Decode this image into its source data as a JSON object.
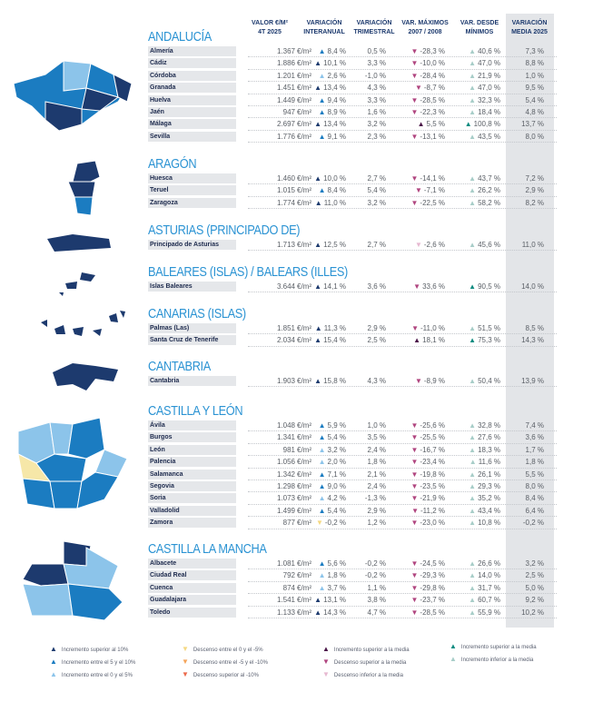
{
  "headers": {
    "valor": "VALOR €/M²",
    "valor2": "4T 2025",
    "inter": "VARIACIÓN",
    "inter2": "INTERANUAL",
    "trim": "VARIACIÓN",
    "trim2": "TRIMESTRAL",
    "max": "VAR. MÁXIMOS",
    "max2": "2007 / 2008",
    "min": "VAR. DESDE",
    "min2": "MÍNIMOS",
    "media": "VARIACIÓN",
    "media2": "MEDIA 2025"
  },
  "unit": "€/m²",
  "colors": {
    "title": "#2b93d3",
    "media_bg": "#e3e5e8"
  },
  "sections": [
    {
      "title": "ANDALUCÍA",
      "rows": [
        [
          "Almería",
          "1.367",
          "up-mid",
          "8,4 %",
          "0,5 %",
          "down-magenta",
          "-28,3 %",
          "up-lightteal",
          "40,6 %",
          "7,3 %"
        ],
        [
          "Cádiz",
          "1.886",
          "up-dark",
          "10,1 %",
          "3,3 %",
          "down-magenta",
          "-10,0 %",
          "up-lightteal",
          "47,0 %",
          "8,8 %"
        ],
        [
          "Córdoba",
          "1.201",
          "up-light",
          "2,6 %",
          "-1,0 %",
          "down-magenta",
          "-28,4 %",
          "up-lightteal",
          "21,9 %",
          "1,0 %"
        ],
        [
          "Granada",
          "1.451",
          "up-dark",
          "13,4 %",
          "4,3 %",
          "down-magenta",
          "-8,7 %",
          "up-lightteal",
          "47,0 %",
          "9,5 %"
        ],
        [
          "Huelva",
          "1.449",
          "up-mid",
          "9,4 %",
          "3,3 %",
          "down-magenta",
          "-28,5 %",
          "up-lightteal",
          "32,3 %",
          "5,4 %"
        ],
        [
          "Jaén",
          "947",
          "up-mid",
          "8,9 %",
          "1,6 %",
          "down-magenta",
          "-22,3 %",
          "up-lightteal",
          "18,4 %",
          "4,8 %"
        ],
        [
          "Málaga",
          "2.697",
          "up-dark",
          "13,4 %",
          "3,2 %",
          "up-purple",
          "5,5 %",
          "up-teal",
          "100,8 %",
          "13,7 %"
        ],
        [
          "Sevilla",
          "1.776",
          "up-mid",
          "9,1 %",
          "2,3 %",
          "down-magenta",
          "-13,1 %",
          "up-lightteal",
          "43,5 %",
          "8,0 %"
        ]
      ]
    },
    {
      "title": "ARAGÓN",
      "rows": [
        [
          "Huesca",
          "1.460",
          "up-dark",
          "10,0 %",
          "2,7 %",
          "down-magenta",
          "-14,1 %",
          "up-lightteal",
          "43,7 %",
          "7,2 %"
        ],
        [
          "Teruel",
          "1.015",
          "up-mid",
          "8,4 %",
          "5,4 %",
          "down-magenta",
          "-7,1 %",
          "up-lightteal",
          "26,2 %",
          "2,9 %"
        ],
        [
          "Zaragoza",
          "1.774",
          "up-dark",
          "11,0 %",
          "3,2 %",
          "down-magenta",
          "-22,5 %",
          "up-lightteal",
          "58,2 %",
          "8,2 %"
        ]
      ]
    },
    {
      "title": "ASTURIAS (PRINCIPADO DE)",
      "rows": [
        [
          "Principado de Asturias",
          "1.713",
          "up-dark",
          "12,5 %",
          "2,7 %",
          "down-pink",
          "-2,6 %",
          "up-lightteal",
          "45,6 %",
          "11,0 %"
        ]
      ]
    },
    {
      "title": "BALEARES (ISLAS) / BALEARS (ILLES)",
      "rows": [
        [
          "Islas Baleares",
          "3.644",
          "up-dark",
          "14,1 %",
          "3,6 %",
          "down-magenta",
          "33,6 %",
          "up-teal",
          "90,5 %",
          "14,0 %"
        ]
      ]
    },
    {
      "title": "CANARIAS (ISLAS)",
      "rows": [
        [
          "Palmas (Las)",
          "1.851",
          "up-dark",
          "11,3 %",
          "2,9 %",
          "down-magenta",
          "-11,0 %",
          "up-lightteal",
          "51,5 %",
          "8,5 %"
        ],
        [
          "Santa Cruz de Tenerife",
          "2.034",
          "up-dark",
          "15,4 %",
          "2,5 %",
          "up-purple",
          "18,1 %",
          "up-teal",
          "75,3 %",
          "14,3 %"
        ]
      ]
    },
    {
      "title": "CANTABRIA",
      "rows": [
        [
          "Cantabria",
          "1.903",
          "up-dark",
          "15,8 %",
          "4,3 %",
          "down-magenta",
          "-8,9 %",
          "up-lightteal",
          "50,4 %",
          "13,9 %"
        ]
      ]
    },
    {
      "title": "CASTILLA Y LEÓN",
      "rows": [
        [
          "Ávila",
          "1.048",
          "up-mid",
          "5,9 %",
          "1,0 %",
          "down-magenta",
          "-25,6 %",
          "up-lightteal",
          "32,8 %",
          "7,4 %"
        ],
        [
          "Burgos",
          "1.341",
          "up-mid",
          "5,4 %",
          "3,5 %",
          "down-magenta",
          "-25,5 %",
          "up-lightteal",
          "27,6 %",
          "3,6 %"
        ],
        [
          "León",
          "981",
          "up-light",
          "3,2 %",
          "2,4 %",
          "down-magenta",
          "-16,7 %",
          "up-lightteal",
          "18,3 %",
          "1,7 %"
        ],
        [
          "Palencia",
          "1.056",
          "up-light",
          "2,0 %",
          "1,8 %",
          "down-magenta",
          "-23,4 %",
          "up-lightteal",
          "11,6 %",
          "1,8 %"
        ],
        [
          "Salamanca",
          "1.342",
          "up-mid",
          "7,1 %",
          "2,1 %",
          "down-magenta",
          "-19,8 %",
          "up-lightteal",
          "26,1 %",
          "5,5 %"
        ],
        [
          "Segovia",
          "1.298",
          "up-mid",
          "9,0 %",
          "2,4 %",
          "down-magenta",
          "-23,5 %",
          "up-lightteal",
          "29,3 %",
          "8,0 %"
        ],
        [
          "Soria",
          "1.073",
          "up-light",
          "4,2 %",
          "-1,3 %",
          "down-magenta",
          "-21,9 %",
          "up-lightteal",
          "35,2 %",
          "8,4 %"
        ],
        [
          "Valladolid",
          "1.499",
          "up-mid",
          "5,4 %",
          "2,9 %",
          "down-magenta",
          "-11,2 %",
          "up-lightteal",
          "43,4 %",
          "6,4 %"
        ],
        [
          "Zamora",
          "877",
          "down-yellow",
          "-0,2 %",
          "1,2 %",
          "down-magenta",
          "-23,0 %",
          "up-lightteal",
          "10,8 %",
          "-0,2 %"
        ]
      ]
    },
    {
      "title": "CASTILLA LA MANCHA",
      "rows": [
        [
          "Albacete",
          "1.081",
          "up-mid",
          "5,6 %",
          "-0,2 %",
          "down-magenta",
          "-24,5 %",
          "up-lightteal",
          "26,6 %",
          "3,2 %"
        ],
        [
          "Ciudad Real",
          "792",
          "up-light",
          "1,8 %",
          "-0,2 %",
          "down-magenta",
          "-29,3 %",
          "up-lightteal",
          "14,0 %",
          "2,5 %"
        ],
        [
          "Cuenca",
          "874",
          "up-light",
          "3,7 %",
          "1,1 %",
          "down-magenta",
          "-29,8 %",
          "up-lightteal",
          "31,7 %",
          "5,0 %"
        ],
        [
          "Guadalajara",
          "1.541",
          "up-dark",
          "13,1 %",
          "3,8 %",
          "down-magenta",
          "-23,7 %",
          "up-lightteal",
          "60,7 %",
          "9,2 %"
        ],
        [
          "Toledo",
          "1.133",
          "up-dark",
          "14,3 %",
          "4,7 %",
          "down-magenta",
          "-28,5 %",
          "up-lightteal",
          "55,9 %",
          "10,2 %"
        ]
      ]
    }
  ],
  "legend": [
    [
      "up-dark",
      "Incremento superior al 10%"
    ],
    [
      "up-mid",
      "Incremento entre el 5 y el 10%"
    ],
    [
      "up-light",
      "Incremento entre el 0 y el 5%"
    ],
    [
      "down-yellow",
      "Descenso entre el 0 y el -5%"
    ],
    [
      "down-orange",
      "Descenso entre el -5 y el -10%"
    ],
    [
      "down-red",
      "Descenso superior al -10%"
    ],
    [
      "up-purple",
      "Incremento superior a la media"
    ],
    [
      "down-magenta",
      "Descenso superior a la media"
    ],
    [
      "down-pink",
      "Descenso inferior a la media"
    ],
    [
      "up-teal",
      "Incremento superior a la media"
    ],
    [
      "up-lightteal",
      "Incremento inferior a la media"
    ]
  ]
}
